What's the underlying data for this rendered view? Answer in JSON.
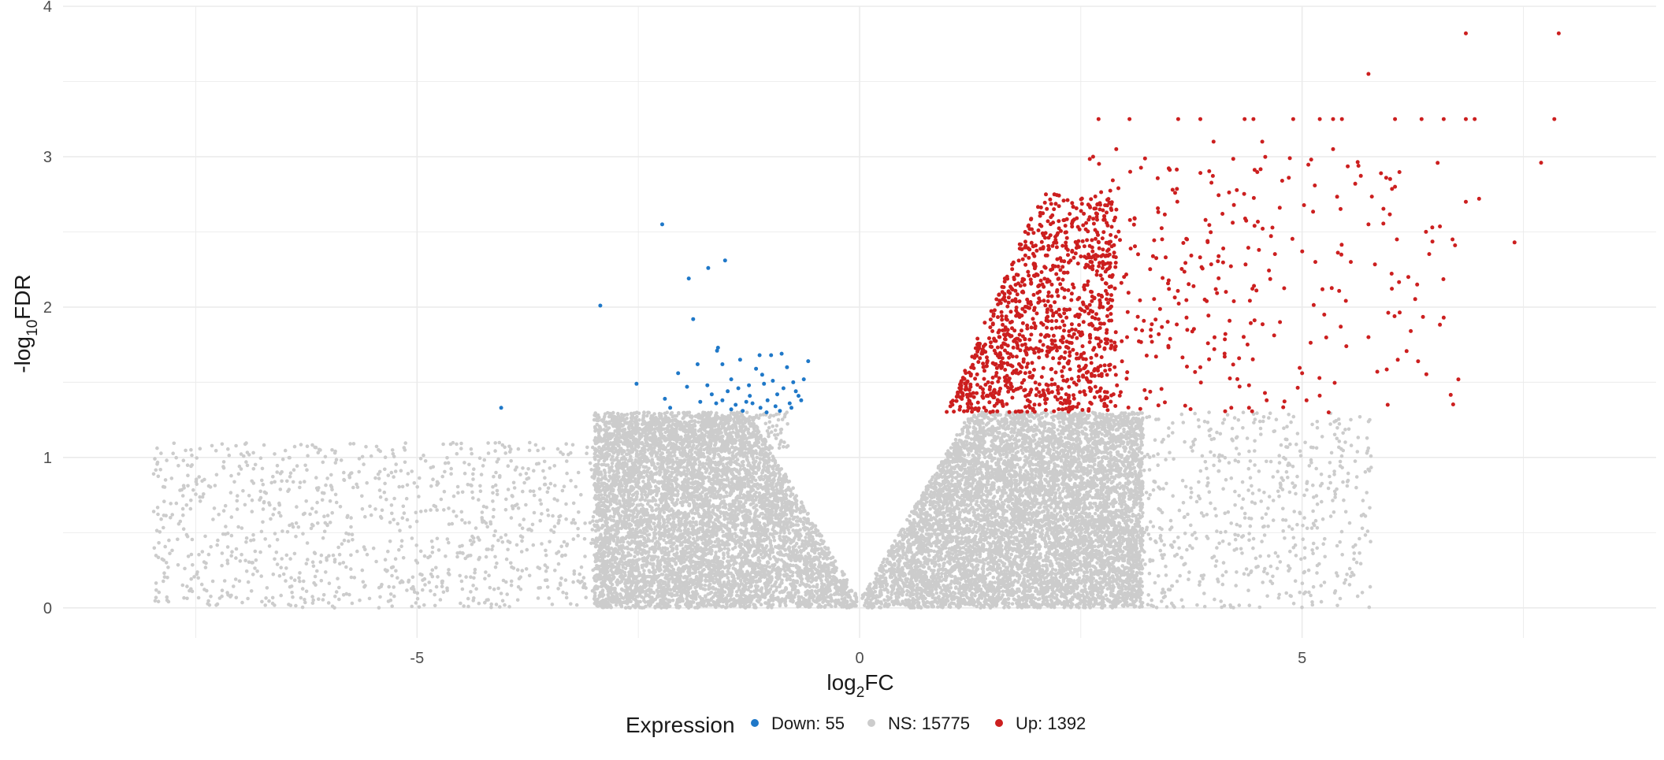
{
  "chart_data": {
    "type": "scatter",
    "title": "",
    "xlabel": {
      "base": "log",
      "sub": "2",
      "rest": "FC"
    },
    "ylabel": {
      "base": "-log",
      "sub": "10",
      "rest": "FDR"
    },
    "xlim": [
      -9,
      9
    ],
    "ylim": [
      -0.2,
      4
    ],
    "x_ticks": [
      -5,
      0,
      5
    ],
    "y_ticks": [
      0,
      1,
      2,
      3,
      4
    ],
    "grid": true,
    "legend": {
      "position": "bottom",
      "title": "Expression",
      "entries": [
        {
          "key": "down",
          "label": "Down: 55"
        },
        {
          "key": "ns",
          "label": "NS: 15775"
        },
        {
          "key": "up",
          "label": "Up: 1392"
        }
      ]
    },
    "colors": {
      "down": "#1f78c8",
      "ns": "#cccccc",
      "up": "#cc1f1f",
      "grid": "#ebebeb"
    },
    "series": [
      {
        "key": "down",
        "points": [
          [
            -4.05,
            1.33
          ],
          [
            -2.93,
            2.01
          ],
          [
            -2.52,
            1.49
          ],
          [
            -2.23,
            2.55
          ],
          [
            -2.14,
            1.33
          ],
          [
            -2.05,
            1.56
          ],
          [
            -1.93,
            2.19
          ],
          [
            -1.88,
            1.92
          ],
          [
            -1.83,
            1.62
          ],
          [
            -1.71,
            2.26
          ],
          [
            -1.72,
            1.48
          ],
          [
            -1.67,
            1.42
          ],
          [
            -1.61,
            1.71
          ],
          [
            -1.6,
            1.73
          ],
          [
            -1.55,
            1.38
          ],
          [
            -1.52,
            2.31
          ],
          [
            -1.49,
            1.44
          ],
          [
            -1.45,
            1.32
          ],
          [
            -1.4,
            1.35
          ],
          [
            -1.37,
            1.46
          ],
          [
            -1.32,
            1.31
          ],
          [
            -1.28,
            1.37
          ],
          [
            -1.24,
            1.41
          ],
          [
            -1.21,
            1.36
          ],
          [
            -1.17,
            1.59
          ],
          [
            -1.13,
            1.68
          ],
          [
            -1.12,
            1.33
          ],
          [
            -1.08,
            1.49
          ],
          [
            -1.04,
            1.38
          ],
          [
            -1.0,
            1.68
          ],
          [
            -0.98,
            1.51
          ],
          [
            -0.93,
            1.42
          ],
          [
            -0.9,
            1.31
          ],
          [
            -0.86,
            1.46
          ],
          [
            -0.82,
            1.6
          ],
          [
            -0.79,
            1.36
          ],
          [
            -0.75,
            1.5
          ],
          [
            -0.72,
            1.44
          ],
          [
            -0.66,
            1.38
          ],
          [
            -0.63,
            1.52
          ],
          [
            -0.58,
            1.64
          ],
          [
            -0.95,
            1.34
          ],
          [
            -1.35,
            1.65
          ],
          [
            -1.45,
            1.52
          ],
          [
            -1.8,
            1.37
          ],
          [
            -2.2,
            1.39
          ],
          [
            -1.25,
            1.48
          ],
          [
            -1.55,
            1.62
          ],
          [
            -0.88,
            1.69
          ],
          [
            -0.69,
            1.41
          ],
          [
            -1.95,
            1.47
          ],
          [
            -1.1,
            1.55
          ],
          [
            -0.77,
            1.33
          ],
          [
            -1.62,
            1.36
          ],
          [
            -1.05,
            1.3
          ]
        ]
      },
      {
        "key": "up",
        "points": [
          [
            6.85,
            3.82
          ],
          [
            7.9,
            3.82
          ],
          [
            5.75,
            3.55
          ],
          [
            2.7,
            3.25
          ],
          [
            3.05,
            3.25
          ],
          [
            3.6,
            3.25
          ],
          [
            3.85,
            3.25
          ],
          [
            4.35,
            3.25
          ],
          [
            4.45,
            3.25
          ],
          [
            4.9,
            3.25
          ],
          [
            5.2,
            3.25
          ],
          [
            5.35,
            3.25
          ],
          [
            5.45,
            3.25
          ],
          [
            6.05,
            3.25
          ],
          [
            6.35,
            3.25
          ],
          [
            6.6,
            3.25
          ],
          [
            6.85,
            3.25
          ],
          [
            6.95,
            3.25
          ],
          [
            7.85,
            3.25
          ],
          [
            4.0,
            3.1
          ],
          [
            4.55,
            3.1
          ],
          [
            2.9,
            3.05
          ],
          [
            5.35,
            3.05
          ],
          [
            7.7,
            2.96
          ],
          [
            5.6,
            2.82
          ],
          [
            6.05,
            2.8
          ],
          [
            6.85,
            2.7
          ],
          [
            7.4,
            2.43
          ],
          [
            6.6,
            1.93
          ],
          [
            5.85,
            1.57
          ],
          [
            5.5,
            1.74
          ],
          [
            5.25,
            1.95
          ],
          [
            5.05,
            1.38
          ],
          [
            5.0,
            1.56
          ],
          [
            5.55,
            2.3
          ],
          [
            6.2,
            2.2
          ],
          [
            6.4,
            2.5
          ],
          [
            5.75,
            2.55
          ],
          [
            4.6,
            1.38
          ],
          [
            4.4,
            1.33
          ],
          [
            4.2,
            1.33
          ],
          [
            5.75,
            1.8
          ],
          [
            6.3,
            2.15
          ],
          [
            7.0,
            2.72
          ],
          [
            4.75,
            1.9
          ],
          [
            5.95,
            2.86
          ],
          [
            5.15,
            2.3
          ],
          [
            4.1,
            2.62
          ],
          [
            3.9,
            2.05
          ],
          [
            3.7,
            2.45
          ],
          [
            5.3,
            1.3
          ],
          [
            3.85,
            1.6
          ],
          [
            4.4,
            1.48
          ],
          [
            4.85,
            2.86
          ],
          [
            6.7,
            2.45
          ]
        ],
        "cloud": [
          {
            "n": 1020,
            "x": [
              0.7,
              2.9
            ],
            "y": [
              1.3,
              2.75
            ],
            "skew": 2.2,
            "curve": 0.42
          },
          {
            "n": 250,
            "x": [
              2.6,
              4.8
            ],
            "y": [
              1.3,
              3.0
            ],
            "skew": 1.4,
            "curve": 0.0
          },
          {
            "n": 67,
            "x": [
              4.8,
              6.9
            ],
            "y": [
              1.35,
              3.0
            ],
            "skew": 1.0,
            "curve": 0.0
          }
        ]
      },
      {
        "key": "ns",
        "cloud": [
          {
            "n": 7300,
            "x": [
              0.03,
              3.2
            ],
            "y": [
              0.0,
              1.3
            ],
            "skew": 1.0,
            "curve": 0.55
          },
          {
            "n": 6400,
            "x": [
              -3.0,
              -0.03
            ],
            "y": [
              0.0,
              1.3
            ],
            "skew": 1.0,
            "curve": 0.55
          },
          {
            "n": 1100,
            "x": [
              -8.0,
              -2.5
            ],
            "y": [
              0.0,
              1.1
            ],
            "skew": 1.0,
            "curve": 0.12
          },
          {
            "n": 700,
            "x": [
              2.5,
              5.8
            ],
            "y": [
              0.0,
              1.3
            ],
            "skew": 1.0,
            "curve": 0.2
          },
          {
            "n": 275,
            "x": [
              -2.8,
              -0.8
            ],
            "y": [
              1.05,
              1.3
            ],
            "skew": 1.0,
            "curve": 0.0
          }
        ]
      }
    ]
  }
}
